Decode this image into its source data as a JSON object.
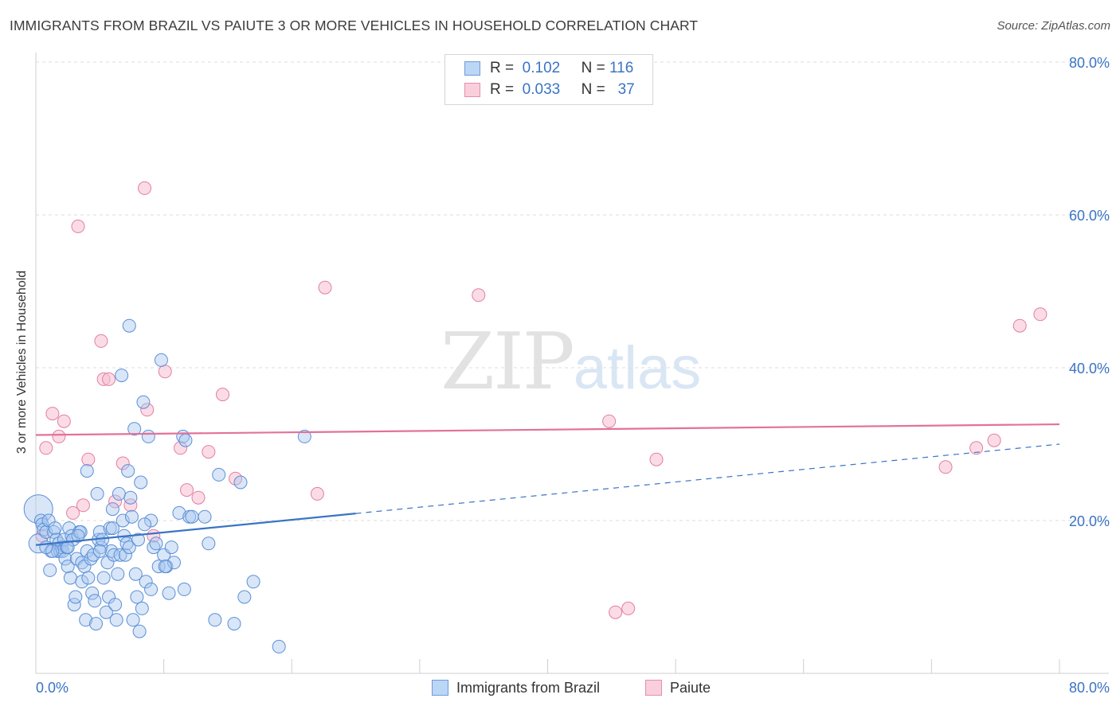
{
  "title": "IMMIGRANTS FROM BRAZIL VS PAIUTE 3 OR MORE VEHICLES IN HOUSEHOLD CORRELATION CHART",
  "source": "Source: ZipAtlas.com",
  "watermark": {
    "zip": "ZIP",
    "atlas": "atlas"
  },
  "stats": [
    {
      "r_label": "R =",
      "r_value": "0.102",
      "n_label": "N =",
      "n_value": "116"
    },
    {
      "r_label": "R =",
      "r_value": "0.033",
      "n_label": "N =",
      "n_value": "37"
    }
  ],
  "colors": {
    "blue_fill": "#a8c8f0",
    "blue_stroke": "#5b8fd6",
    "blue_line": "#3a74c4",
    "pink_fill": "#f7c0d2",
    "pink_stroke": "#e17fa0",
    "pink_line": "#e2729a",
    "grid": "#dedede",
    "tick_label": "#3a74c4"
  },
  "chart_data": {
    "type": "scatter",
    "title": "IMMIGRANTS FROM BRAZIL VS PAIUTE 3 OR MORE VEHICLES IN HOUSEHOLD CORRELATION CHART",
    "xlabel": "",
    "ylabel": "3 or more Vehicles in Household",
    "xlim": [
      0,
      80
    ],
    "ylim": [
      0,
      82
    ],
    "x_tick_labels": [
      "0.0%",
      "80.0%"
    ],
    "y_ticks": [
      20,
      40,
      60,
      80
    ],
    "y_tick_labels": [
      "20.0%",
      "40.0%",
      "60.0%",
      "80.0%"
    ],
    "legend": [
      "Immigrants from Brazil",
      "Paiute"
    ],
    "series": [
      {
        "name": "Immigrants from Brazil",
        "color": "#a8c8f0",
        "trend": {
          "x_start": 0,
          "x_end_solid": 25,
          "x_end_dashed": 80,
          "y_at_0": 16.8,
          "y_at_80": 30.0
        },
        "points": [
          [
            0.2,
            21.5
          ],
          [
            0.2,
            17.0
          ],
          [
            0.4,
            20.0
          ],
          [
            0.5,
            19.5
          ],
          [
            0.6,
            18.8
          ],
          [
            0.8,
            18.5
          ],
          [
            1.0,
            20.0
          ],
          [
            1.1,
            13.5
          ],
          [
            1.2,
            16.0
          ],
          [
            1.4,
            18.5
          ],
          [
            1.5,
            19.0
          ],
          [
            1.6,
            17.5
          ],
          [
            1.7,
            16.0
          ],
          [
            1.8,
            17.0
          ],
          [
            1.9,
            16.0
          ],
          [
            2.0,
            16.5
          ],
          [
            2.1,
            16.0
          ],
          [
            2.2,
            17.5
          ],
          [
            2.3,
            15.0
          ],
          [
            2.4,
            16.5
          ],
          [
            2.5,
            14.0
          ],
          [
            2.6,
            19.0
          ],
          [
            2.7,
            12.5
          ],
          [
            2.8,
            18.0
          ],
          [
            2.9,
            17.5
          ],
          [
            3.0,
            9.0
          ],
          [
            3.1,
            10.0
          ],
          [
            3.2,
            15.0
          ],
          [
            3.4,
            18.5
          ],
          [
            3.5,
            18.5
          ],
          [
            3.6,
            14.5
          ],
          [
            3.6,
            12.0
          ],
          [
            3.8,
            14.0
          ],
          [
            3.9,
            7.0
          ],
          [
            4.0,
            16.0
          ],
          [
            4.1,
            12.5
          ],
          [
            4.3,
            15.0
          ],
          [
            4.4,
            10.5
          ],
          [
            4.5,
            15.5
          ],
          [
            4.6,
            9.5
          ],
          [
            4.7,
            6.5
          ],
          [
            4.8,
            23.5
          ],
          [
            4.9,
            17.5
          ],
          [
            5.0,
            18.5
          ],
          [
            5.1,
            16.5
          ],
          [
            5.2,
            17.5
          ],
          [
            5.3,
            12.5
          ],
          [
            5.5,
            8.0
          ],
          [
            5.6,
            14.5
          ],
          [
            5.7,
            10.0
          ],
          [
            5.8,
            19.0
          ],
          [
            5.9,
            16.0
          ],
          [
            6.0,
            21.5
          ],
          [
            6.1,
            15.5
          ],
          [
            6.2,
            9.0
          ],
          [
            6.3,
            7.0
          ],
          [
            6.4,
            13.0
          ],
          [
            6.5,
            23.5
          ],
          [
            6.6,
            15.5
          ],
          [
            6.8,
            20.0
          ],
          [
            6.9,
            18.0
          ],
          [
            7.0,
            15.5
          ],
          [
            7.1,
            17.0
          ],
          [
            7.2,
            26.5
          ],
          [
            7.3,
            16.5
          ],
          [
            7.4,
            23.0
          ],
          [
            7.5,
            20.5
          ],
          [
            7.6,
            7.0
          ],
          [
            7.7,
            32.0
          ],
          [
            7.8,
            13.0
          ],
          [
            7.9,
            10.0
          ],
          [
            8.0,
            17.5
          ],
          [
            8.1,
            5.5
          ],
          [
            8.2,
            25.0
          ],
          [
            8.3,
            8.5
          ],
          [
            8.4,
            35.5
          ],
          [
            8.6,
            12.0
          ],
          [
            8.8,
            31.0
          ],
          [
            9.0,
            20.0
          ],
          [
            9.2,
            16.5
          ],
          [
            9.4,
            17.0
          ],
          [
            9.6,
            14.0
          ],
          [
            9.8,
            41.0
          ],
          [
            10.0,
            15.5
          ],
          [
            10.2,
            14.0
          ],
          [
            10.4,
            10.5
          ],
          [
            10.6,
            16.5
          ],
          [
            10.8,
            14.5
          ],
          [
            11.2,
            21.0
          ],
          [
            11.5,
            31.0
          ],
          [
            11.7,
            30.5
          ],
          [
            12.0,
            20.5
          ],
          [
            12.2,
            20.5
          ],
          [
            13.2,
            20.5
          ],
          [
            13.5,
            17.0
          ],
          [
            14.0,
            7.0
          ],
          [
            14.3,
            26.0
          ],
          [
            15.5,
            6.5
          ],
          [
            16.0,
            25.0
          ],
          [
            16.3,
            10.0
          ],
          [
            17.0,
            12.0
          ],
          [
            19.0,
            3.5
          ],
          [
            21.0,
            31.0
          ],
          [
            4.0,
            26.5
          ],
          [
            5.0,
            16.0
          ],
          [
            6.7,
            39.0
          ],
          [
            7.3,
            45.5
          ],
          [
            3.3,
            18.0
          ],
          [
            2.5,
            16.5
          ],
          [
            1.3,
            16.0
          ],
          [
            0.8,
            16.5
          ],
          [
            9.0,
            11.0
          ],
          [
            10.1,
            14.0
          ],
          [
            11.6,
            11.0
          ],
          [
            6.0,
            19.0
          ],
          [
            8.5,
            19.5
          ]
        ]
      },
      {
        "name": "Paiute",
        "color": "#f7c0d2",
        "trend": {
          "x_start": 0,
          "x_end": 80,
          "y_at_0": 31.2,
          "y_at_80": 32.6
        },
        "points": [
          [
            0.8,
            29.5
          ],
          [
            1.3,
            34.0
          ],
          [
            1.8,
            31.0
          ],
          [
            2.2,
            33.0
          ],
          [
            2.9,
            21.0
          ],
          [
            3.3,
            58.5
          ],
          [
            3.7,
            22.0
          ],
          [
            4.1,
            28.0
          ],
          [
            5.1,
            43.5
          ],
          [
            5.3,
            38.5
          ],
          [
            5.7,
            38.5
          ],
          [
            6.2,
            22.5
          ],
          [
            6.8,
            27.5
          ],
          [
            7.4,
            22.0
          ],
          [
            8.5,
            63.5
          ],
          [
            8.7,
            34.5
          ],
          [
            9.2,
            18.0
          ],
          [
            10.1,
            39.5
          ],
          [
            11.3,
            29.5
          ],
          [
            11.8,
            24.0
          ],
          [
            12.7,
            23.0
          ],
          [
            13.5,
            29.0
          ],
          [
            14.6,
            36.5
          ],
          [
            15.6,
            25.5
          ],
          [
            22.0,
            23.5
          ],
          [
            22.6,
            50.5
          ],
          [
            34.6,
            49.5
          ],
          [
            44.8,
            33.0
          ],
          [
            45.3,
            8.0
          ],
          [
            46.3,
            8.5
          ],
          [
            48.5,
            28.0
          ],
          [
            71.1,
            27.0
          ],
          [
            73.5,
            29.5
          ],
          [
            74.9,
            30.5
          ],
          [
            76.9,
            45.5
          ],
          [
            78.5,
            47.0
          ],
          [
            0.5,
            18.0
          ]
        ]
      }
    ]
  }
}
